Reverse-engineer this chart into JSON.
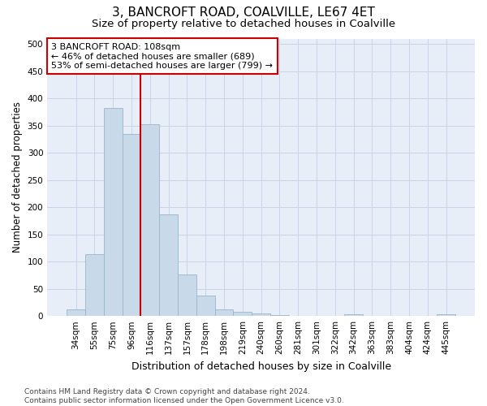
{
  "title": "3, BANCROFT ROAD, COALVILLE, LE67 4ET",
  "subtitle": "Size of property relative to detached houses in Coalville",
  "xlabel": "Distribution of detached houses by size in Coalville",
  "ylabel": "Number of detached properties",
  "bar_categories": [
    "34sqm",
    "55sqm",
    "75sqm",
    "96sqm",
    "116sqm",
    "137sqm",
    "157sqm",
    "178sqm",
    "198sqm",
    "219sqm",
    "240sqm",
    "260sqm",
    "281sqm",
    "301sqm",
    "322sqm",
    "342sqm",
    "363sqm",
    "383sqm",
    "404sqm",
    "424sqm",
    "445sqm"
  ],
  "bar_values": [
    12,
    113,
    383,
    335,
    353,
    187,
    76,
    38,
    12,
    7,
    5,
    2,
    0,
    0,
    0,
    4,
    0,
    0,
    0,
    0,
    4
  ],
  "bar_color": "#c8d9ea",
  "bar_edge_color": "#9ab5cc",
  "grid_color": "#c8d4e8",
  "background_color": "#e8eef8",
  "red_line_x": 4.0,
  "annotation_text": "3 BANCROFT ROAD: 108sqm\n← 46% of detached houses are smaller (689)\n53% of semi-detached houses are larger (799) →",
  "annotation_box_color": "#ffffff",
  "annotation_box_edge_color": "#cc0000",
  "ylim": [
    0,
    510
  ],
  "yticks": [
    0,
    50,
    100,
    150,
    200,
    250,
    300,
    350,
    400,
    450,
    500
  ],
  "footer_line1": "Contains HM Land Registry data © Crown copyright and database right 2024.",
  "footer_line2": "Contains public sector information licensed under the Open Government Licence v3.0.",
  "title_fontsize": 11,
  "subtitle_fontsize": 9.5,
  "xlabel_fontsize": 9,
  "ylabel_fontsize": 8.5,
  "tick_fontsize": 7.5,
  "annotation_fontsize": 8,
  "footer_fontsize": 6.5
}
